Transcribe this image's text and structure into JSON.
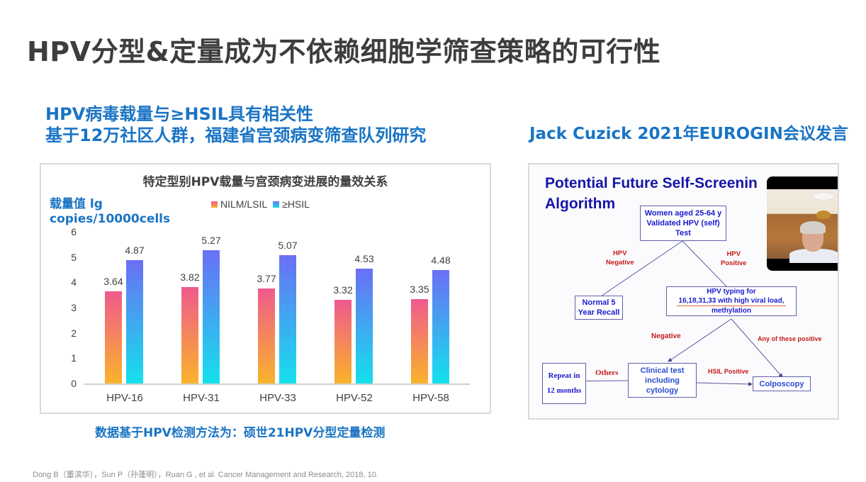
{
  "page": {
    "title": "HPV分型&定量成为不依赖细胞学筛查策略的可行性",
    "subtitle_line1": "HPV病毒载量与≥HSIL具有相关性",
    "subtitle_line2": "基于12万社区人群，福建省宫颈病变筛查队列研究",
    "right_heading": "Jack Cuzick 2021年EUROGIN会议发言",
    "chart_note": "数据基于HPV检测方法为：硕世21HPV分型定量检测",
    "citation": "Dong B（董滨华），Sun P（孙蓬明），Ruan G , et al. Cancer Management and Research, 2018, 10."
  },
  "chart_data": {
    "type": "bar",
    "title": "特定型别HPV载量与宫颈病变进展的量效关系",
    "ylabel": "载量值 lg copies/10000cells",
    "xlabel": "",
    "ylim": [
      0,
      6
    ],
    "yticks": [
      "0",
      "1",
      "2",
      "3",
      "4",
      "5",
      "6"
    ],
    "categories": [
      "HPV-16",
      "HPV-31",
      "HPV-33",
      "HPV-52",
      "HPV-58"
    ],
    "series": [
      {
        "name": "NILM/LSIL",
        "values": [
          3.64,
          3.82,
          3.77,
          3.32,
          3.35
        ],
        "color_top": "#ef5a8d",
        "color_bottom": "#f9b32b"
      },
      {
        "name": "≥HSIL",
        "values": [
          4.87,
          5.27,
          5.07,
          4.53,
          4.48
        ],
        "color_top": "#6b6ff5",
        "color_bottom": "#14e1ec"
      }
    ],
    "legend_position": "top",
    "grid": false,
    "data_labels": true
  },
  "chart_labels": {
    "ylabel_line1": "载量值 lg",
    "ylabel_line2": "copies/10000cells",
    "legend_a": "NILM/LSIL",
    "legend_b": "≥HSIL",
    "val_a": [
      "3.64",
      "3.82",
      "3.77",
      "3.32",
      "3.35"
    ],
    "val_b": [
      "4.87",
      "5.27",
      "5.07",
      "4.53",
      "4.48"
    ]
  },
  "flowchart": {
    "title_line1": "Potential Future Self-Screenin",
    "title_line2": "Algorithm",
    "start_box": [
      "Women aged 25-64 y",
      "Validated HPV (self)",
      "Test"
    ],
    "hpv_negative": [
      "HPV",
      "Negative"
    ],
    "hpv_positive": [
      "HPV",
      "Positive"
    ],
    "recall_box": [
      "Normal 5",
      "Year Recall"
    ],
    "typing_box": [
      "HPV typing for",
      "16,18,31,33 with high viral load,",
      "methylation"
    ],
    "negative_label": "Negative",
    "any_positive_label": "Any of these positive",
    "repeat_box": [
      "Repeat in",
      "12 months"
    ],
    "others_label": "Others",
    "clinical_box": [
      "Clinical test",
      "including",
      "cytology"
    ],
    "hsil_label": "HSIL Positive",
    "colposcopy_box": "Colposcopy"
  }
}
